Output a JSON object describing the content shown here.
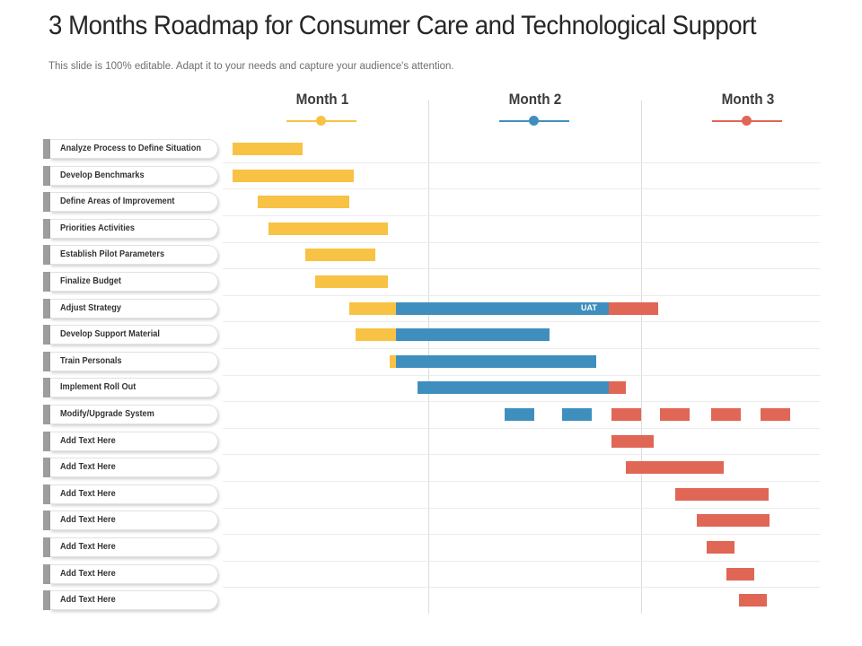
{
  "title": "3 Months Roadmap for Consumer Care and Technological Support",
  "subtitle": "This slide is 100% editable. Adapt it to your needs and capture your audience's attention.",
  "colors": {
    "yellow": "#F8C244",
    "blue": "#3F8FBE",
    "red": "#E06656",
    "stub": "#9D9D9D"
  },
  "months": [
    {
      "label": "Month 1",
      "color": "#F8C244"
    },
    {
      "label": "Month 2",
      "color": "#3F8FBE"
    },
    {
      "label": "Month 3",
      "color": "#E06656"
    }
  ],
  "tasks": [
    "Analyze Process to Define Situation",
    "Develop Benchmarks",
    "Define Areas of Improvement",
    "Priorities Activities",
    "Establish Pilot Parameters",
    "Finalize Budget",
    "Adjust Strategy",
    "Develop Support Material",
    "Train Personals",
    "Implement Roll Out",
    "Modify/Upgrade System",
    "Add Text Here",
    "Add Text Here",
    "Add Text Here",
    "Add Text Here",
    "Add Text Here",
    "Add Text Here",
    "Add Text Here"
  ],
  "chart_data": {
    "type": "gantt",
    "time_unit": "month",
    "x_range": [
      0,
      3
    ],
    "categories": [
      "Month 1",
      "Month 2",
      "Month 3"
    ],
    "bars": [
      {
        "row": 0,
        "start": 0.08,
        "end": 0.41,
        "color": "yellow"
      },
      {
        "row": 1,
        "start": 0.08,
        "end": 0.65,
        "color": "yellow"
      },
      {
        "row": 2,
        "start": 0.2,
        "end": 0.63,
        "color": "yellow"
      },
      {
        "row": 3,
        "start": 0.25,
        "end": 0.81,
        "color": "yellow"
      },
      {
        "row": 4,
        "start": 0.42,
        "end": 0.75,
        "color": "yellow"
      },
      {
        "row": 5,
        "start": 0.47,
        "end": 0.81,
        "color": "yellow"
      },
      {
        "row": 6,
        "start": 0.63,
        "end": 0.85,
        "color": "yellow"
      },
      {
        "row": 6,
        "start": 0.85,
        "end": 1.85,
        "color": "blue",
        "label": "UAT"
      },
      {
        "row": 6,
        "start": 1.85,
        "end": 2.08,
        "color": "red"
      },
      {
        "row": 7,
        "start": 0.66,
        "end": 0.85,
        "color": "yellow"
      },
      {
        "row": 7,
        "start": 0.85,
        "end": 1.57,
        "color": "blue"
      },
      {
        "row": 8,
        "start": 0.82,
        "end": 0.85,
        "color": "yellow"
      },
      {
        "row": 8,
        "start": 0.85,
        "end": 1.79,
        "color": "blue"
      },
      {
        "row": 9,
        "start": 0.95,
        "end": 1.85,
        "color": "blue"
      },
      {
        "row": 9,
        "start": 1.85,
        "end": 1.93,
        "color": "red"
      },
      {
        "row": 10,
        "start": 1.36,
        "end": 1.5,
        "color": "blue"
      },
      {
        "row": 10,
        "start": 1.63,
        "end": 1.77,
        "color": "blue"
      },
      {
        "row": 10,
        "start": 1.86,
        "end": 2.0,
        "color": "red"
      },
      {
        "row": 10,
        "start": 2.09,
        "end": 2.23,
        "color": "red"
      },
      {
        "row": 10,
        "start": 2.33,
        "end": 2.47,
        "color": "red"
      },
      {
        "row": 10,
        "start": 2.56,
        "end": 2.7,
        "color": "red"
      },
      {
        "row": 11,
        "start": 1.86,
        "end": 2.06,
        "color": "red"
      },
      {
        "row": 12,
        "start": 1.93,
        "end": 2.39,
        "color": "red"
      },
      {
        "row": 13,
        "start": 2.16,
        "end": 2.6,
        "color": "red"
      },
      {
        "row": 14,
        "start": 2.26,
        "end": 2.6,
        "color": "red"
      },
      {
        "row": 15,
        "start": 2.31,
        "end": 2.44,
        "color": "red"
      },
      {
        "row": 16,
        "start": 2.4,
        "end": 2.53,
        "color": "red"
      },
      {
        "row": 17,
        "start": 2.46,
        "end": 2.59,
        "color": "red"
      }
    ]
  }
}
